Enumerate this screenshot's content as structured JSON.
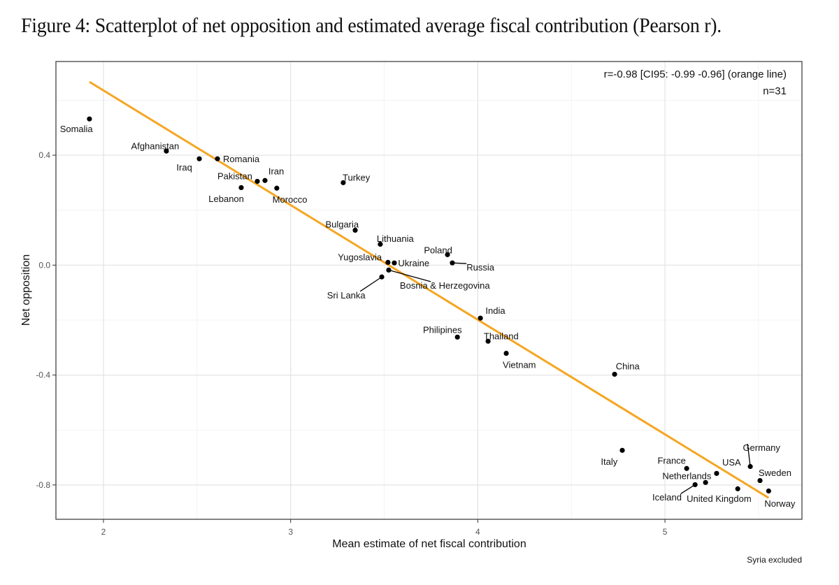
{
  "figure_title": "Figure 4: Scatterplot of net opposition and estimated average fiscal contribution (Pearson r).",
  "chart_data": {
    "type": "scatter",
    "title": "Figure 4: Scatterplot of net opposition and estimated average fiscal contribution (Pearson r).",
    "xlabel": "Mean estimate of net fiscal contribution",
    "ylabel": "Net opposition",
    "xlim": [
      1.746,
      5.732
    ],
    "ylim": [
      -0.925,
      0.741
    ],
    "xticks": [
      2,
      3,
      4,
      5
    ],
    "xtick_labels": [
      "2",
      "3",
      "4",
      "5"
    ],
    "x_minor_grid": [
      2.5,
      3.5,
      4.5,
      5.5
    ],
    "yticks": [
      0.4,
      0.0,
      -0.4,
      -0.8
    ],
    "ytick_labels": [
      "0.4",
      "0.0",
      "-0.4",
      "-0.8"
    ],
    "y_minor_grid": [
      0.6,
      0.2,
      -0.2,
      -0.6
    ],
    "grid": true,
    "annotation_lines": [
      "r=-0.98 [CI95: -0.99 -0.96] (orange line)",
      "n=31"
    ],
    "annotation_placement": "top-right",
    "caption": "Syria excluded",
    "fit_line": {
      "color": "#F5A623",
      "x": [
        1.925,
        5.554
      ],
      "y": [
        0.667,
        -0.847
      ]
    },
    "point_color": "#000000",
    "points": [
      {
        "label": "Somalia",
        "x": 1.925,
        "y": 0.532,
        "lx": -0.07,
        "ly": -0.035,
        "anchor": "middle",
        "leader": false
      },
      {
        "label": "Afghanistan",
        "x": 2.336,
        "y": 0.415,
        "lx": -0.06,
        "ly": 0.02,
        "anchor": "middle",
        "leader": false
      },
      {
        "label": "Iraq",
        "x": 2.512,
        "y": 0.387,
        "lx": -0.08,
        "ly": -0.03,
        "anchor": "middle",
        "leader": false
      },
      {
        "label": "Romania",
        "x": 2.609,
        "y": 0.387,
        "lx": 0.03,
        "ly": 0.0,
        "anchor": "start",
        "leader": false
      },
      {
        "label": "Pakistan",
        "x": 2.822,
        "y": 0.305,
        "lx": -0.12,
        "ly": 0.02,
        "anchor": "middle",
        "leader": false
      },
      {
        "label": "Iran",
        "x": 2.863,
        "y": 0.308,
        "lx": 0.06,
        "ly": 0.035,
        "anchor": "middle",
        "leader": false
      },
      {
        "label": "Lebanon",
        "x": 2.736,
        "y": 0.282,
        "lx": -0.08,
        "ly": -0.04,
        "anchor": "middle",
        "leader": false
      },
      {
        "label": "Morocco",
        "x": 2.926,
        "y": 0.28,
        "lx": 0.07,
        "ly": -0.04,
        "anchor": "middle",
        "leader": false
      },
      {
        "label": "Turkey",
        "x": 3.281,
        "y": 0.3,
        "lx": 0.07,
        "ly": 0.02,
        "anchor": "middle",
        "leader": false
      },
      {
        "label": "Bulgaria",
        "x": 3.345,
        "y": 0.127,
        "lx": -0.07,
        "ly": 0.022,
        "anchor": "middle",
        "leader": false
      },
      {
        "label": "Lithuania",
        "x": 3.479,
        "y": 0.076,
        "lx": 0.08,
        "ly": 0.022,
        "anchor": "middle",
        "leader": false
      },
      {
        "label": "Poland",
        "x": 3.838,
        "y": 0.038,
        "lx": -0.05,
        "ly": 0.018,
        "anchor": "middle",
        "leader": false
      },
      {
        "label": "Yugoslavia",
        "x": 3.52,
        "y": 0.01,
        "lx": -0.15,
        "ly": 0.02,
        "anchor": "middle",
        "leader": false
      },
      {
        "label": "Ukraine",
        "x": 3.554,
        "y": 0.008,
        "lx": 0.02,
        "ly": 0.0,
        "anchor": "start",
        "leader": false
      },
      {
        "label": "Russia",
        "x": 3.864,
        "y": 0.008,
        "lx": 0.15,
        "ly": -0.015,
        "anchor": "middle",
        "leader": true
      },
      {
        "label": "Bosnia & Herzegovina",
        "x": 3.524,
        "y": -0.018,
        "lx": 0.3,
        "ly": -0.055,
        "anchor": "middle",
        "leader": true
      },
      {
        "label": "Sri Lanka",
        "x": 3.487,
        "y": -0.043,
        "lx": -0.19,
        "ly": -0.065,
        "anchor": "middle",
        "leader": true
      },
      {
        "label": "India",
        "x": 4.014,
        "y": -0.193,
        "lx": 0.08,
        "ly": 0.028,
        "anchor": "middle",
        "leader": false
      },
      {
        "label": "Philipines",
        "x": 3.891,
        "y": -0.262,
        "lx": -0.08,
        "ly": 0.028,
        "anchor": "middle",
        "leader": false
      },
      {
        "label": "Thailand",
        "x": 4.055,
        "y": -0.277,
        "lx": 0.07,
        "ly": 0.02,
        "anchor": "middle",
        "leader": false
      },
      {
        "label": "Vietnam",
        "x": 4.152,
        "y": -0.321,
        "lx": 0.07,
        "ly": -0.04,
        "anchor": "middle",
        "leader": false
      },
      {
        "label": "China",
        "x": 4.731,
        "y": -0.397,
        "lx": 0.07,
        "ly": 0.03,
        "anchor": "middle",
        "leader": false
      },
      {
        "label": "Italy",
        "x": 4.772,
        "y": -0.674,
        "lx": -0.07,
        "ly": -0.04,
        "anchor": "middle",
        "leader": false
      },
      {
        "label": "France",
        "x": 5.116,
        "y": -0.74,
        "lx": -0.08,
        "ly": 0.03,
        "anchor": "middle",
        "leader": false
      },
      {
        "label": "USA",
        "x": 5.276,
        "y": -0.758,
        "lx": 0.08,
        "ly": 0.042,
        "anchor": "middle",
        "leader": false
      },
      {
        "label": "Germany",
        "x": 5.456,
        "y": -0.733,
        "lx": 0.06,
        "ly": 0.07,
        "anchor": "middle",
        "leader": true
      },
      {
        "label": "Sweden",
        "x": 5.508,
        "y": -0.784,
        "lx": 0.08,
        "ly": 0.03,
        "anchor": "middle",
        "leader": false
      },
      {
        "label": "Netherlands",
        "x": 5.217,
        "y": -0.791,
        "lx": -0.1,
        "ly": 0.025,
        "anchor": "middle",
        "leader": false
      },
      {
        "label": "Iceland",
        "x": 5.161,
        "y": -0.799,
        "lx": -0.15,
        "ly": -0.045,
        "anchor": "middle",
        "leader": true
      },
      {
        "label": "United Kingdom",
        "x": 5.389,
        "y": -0.814,
        "lx": -0.1,
        "ly": -0.035,
        "anchor": "middle",
        "leader": false
      },
      {
        "label": "Norway",
        "x": 5.554,
        "y": -0.822,
        "lx": 0.06,
        "ly": -0.045,
        "anchor": "middle",
        "leader": false
      }
    ]
  }
}
